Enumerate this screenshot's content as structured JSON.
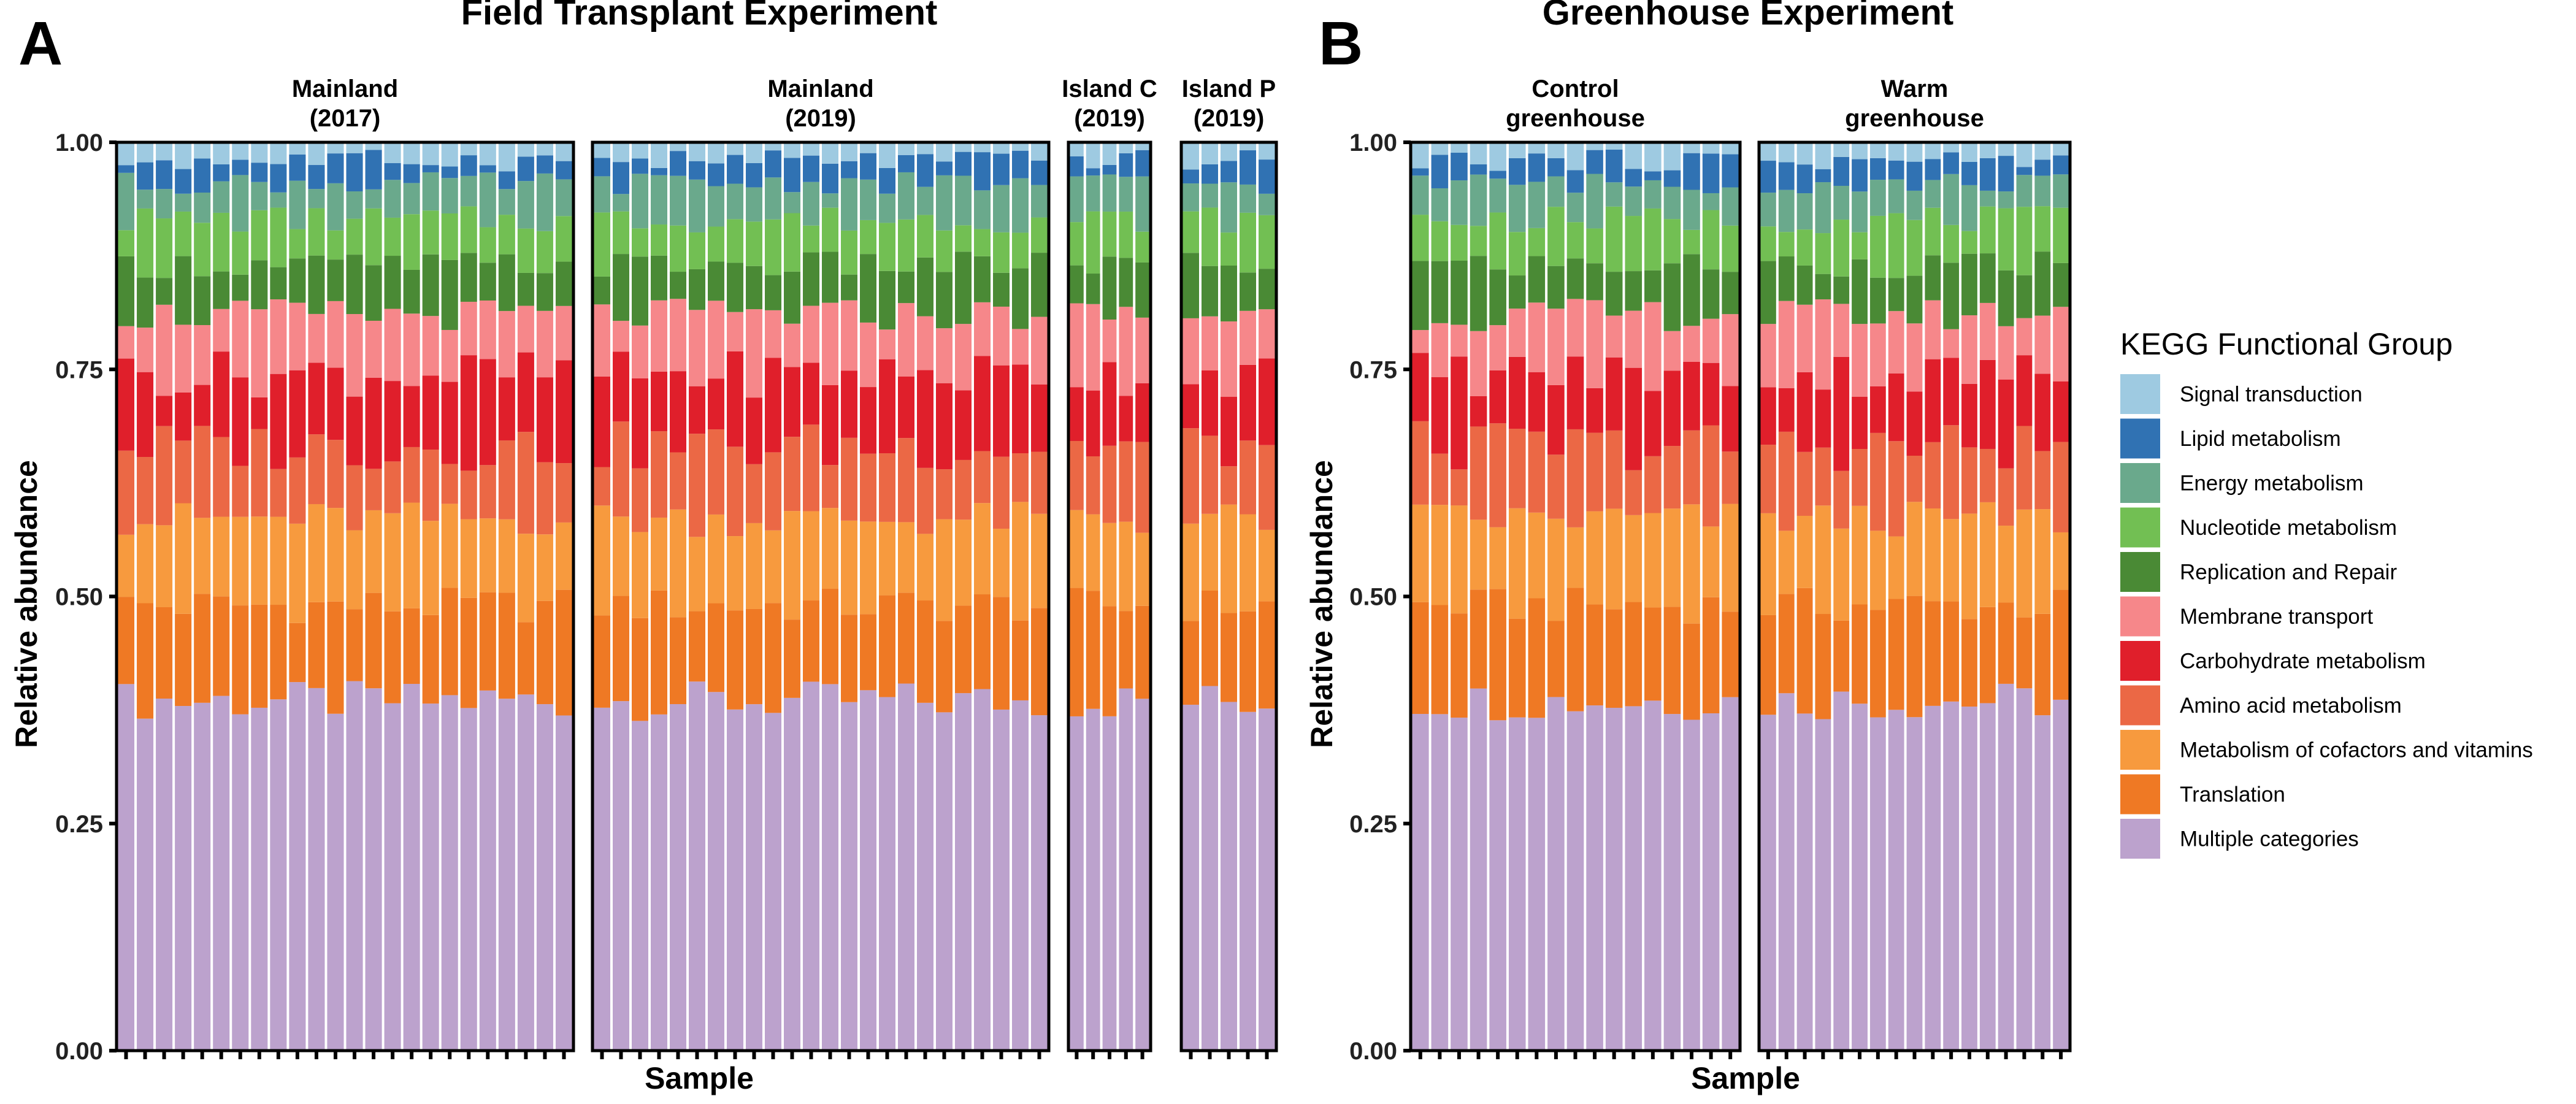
{
  "chart_data": {
    "type": "bar",
    "stacked": true,
    "ylim": [
      0,
      1
    ],
    "yticks": [
      "0.00",
      "0.25",
      "0.50",
      "0.75",
      "1.00"
    ],
    "legend": {
      "title": "KEGG Functional Group",
      "placement": "right",
      "items": [
        {
          "name": "Signal transduction",
          "color": "#9ecae1"
        },
        {
          "name": "Lipid metabolism",
          "color": "#3072b3"
        },
        {
          "name": "Energy metabolism",
          "color": "#6aa98c"
        },
        {
          "name": "Nucleotide metabolism",
          "color": "#72bf53"
        },
        {
          "name": "Replication and Repair",
          "color": "#4a8a35"
        },
        {
          "name": "Membrane transport",
          "color": "#f6878a"
        },
        {
          "name": "Carbohydrate metabolism",
          "color": "#e01f2b"
        },
        {
          "name": "Amino acid metabolism",
          "color": "#eb6845"
        },
        {
          "name": "Metabolism of cofactors and vitamins",
          "color": "#f79a3e"
        },
        {
          "name": "Translation",
          "color": "#ef7924"
        },
        {
          "name": "Multiple categories",
          "color": "#bca2cd"
        }
      ]
    },
    "panels": [
      {
        "letter": "A",
        "title": "Field Transplant Experiment",
        "xlabel": "Sample",
        "ylabel": "Relative abundance",
        "facets": [
          {
            "label": [
              "Mainland",
              "(2017)"
            ],
            "n_samples": 24
          },
          {
            "label": [
              "Mainland",
              "(2019)"
            ],
            "n_samples": 24
          },
          {
            "label": [
              "Island C",
              "(2019)"
            ],
            "n_samples": 5
          },
          {
            "label": [
              "Island P",
              "(2019)"
            ],
            "n_samples": 5
          }
        ]
      },
      {
        "letter": "B",
        "title": "Greenhouse Experiment",
        "xlabel": "Sample",
        "ylabel": "Relative abundance",
        "facets": [
          {
            "label": [
              "Control",
              "greenhouse"
            ],
            "n_samples": 17
          },
          {
            "label": [
              "Warm",
              "greenhouse"
            ],
            "n_samples": 17
          }
        ]
      }
    ],
    "typical_cumulative_tops_bottom_up": {
      "Multiple categories": 0.385,
      "Translation": 0.49,
      "Metabolism of cofactors and vitamins": 0.585,
      "Amino acid metabolism": 0.665,
      "Carbohydrate metabolism": 0.745,
      "Membrane transport": 0.81,
      "Replication and Repair": 0.865,
      "Nucleotide metabolism": 0.915,
      "Energy metabolism": 0.955,
      "Lipid metabolism": 0.98,
      "Signal transduction": 1.0
    }
  }
}
